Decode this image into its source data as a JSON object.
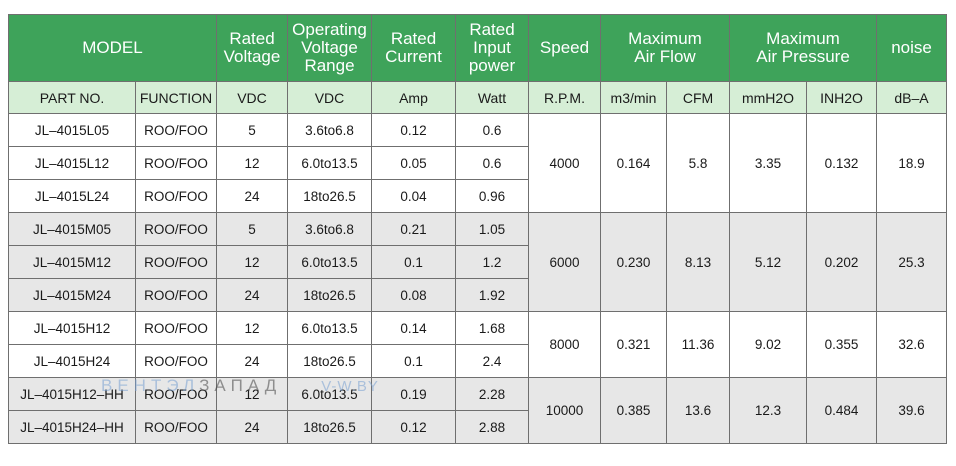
{
  "header": {
    "model": "MODEL",
    "rated_voltage": "Rated\nVoltage",
    "operating_voltage_range": "Operating\nVoltage\nRange",
    "rated_current": "Rated\nCurrent",
    "rated_input_power": "Rated\nInput\npower",
    "speed": "Speed",
    "max_air_flow": "Maximum\nAir Flow",
    "max_air_pressure": "Maximum\nAir Pressure",
    "noise": "noise"
  },
  "subheader": {
    "part_no": "PART NO.",
    "function": "FUNCTION",
    "vdc1": "VDC",
    "vdc2": "VDC",
    "amp": "Amp",
    "watt": "Watt",
    "rpm": "R.P.M.",
    "m3min": "m3/min",
    "cfm": "CFM",
    "mmh2o": "mmH2O",
    "inh2o": "INH2O",
    "dba": "dB–A"
  },
  "rows": [
    {
      "part": "JL–4015L05",
      "func": "ROO/FOO",
      "volt": "5",
      "range": "3.6to6.8",
      "amp": "0.12",
      "watt": "0.6"
    },
    {
      "part": "JL–4015L12",
      "func": "ROO/FOO",
      "volt": "12",
      "range": "6.0to13.5",
      "amp": "0.05",
      "watt": "0.6"
    },
    {
      "part": "JL–4015L24",
      "func": "ROO/FOO",
      "volt": "24",
      "range": "18to26.5",
      "amp": "0.04",
      "watt": "0.96"
    },
    {
      "part": "JL–4015M05",
      "func": "ROO/FOO",
      "volt": "5",
      "range": "3.6to6.8",
      "amp": "0.21",
      "watt": "1.05"
    },
    {
      "part": "JL–4015M12",
      "func": "ROO/FOO",
      "volt": "12",
      "range": "6.0to13.5",
      "amp": "0.1",
      "watt": "1.2"
    },
    {
      "part": "JL–4015M24",
      "func": "ROO/FOO",
      "volt": "24",
      "range": "18to26.5",
      "amp": "0.08",
      "watt": "1.92"
    },
    {
      "part": "JL–4015H12",
      "func": "ROO/FOO",
      "volt": "12",
      "range": "6.0to13.5",
      "amp": "0.14",
      "watt": "1.68"
    },
    {
      "part": "JL–4015H24",
      "func": "ROO/FOO",
      "volt": "24",
      "range": "18to26.5",
      "amp": "0.1",
      "watt": "2.4"
    },
    {
      "part": "JL–4015H12–HH",
      "func": "ROO/FOO",
      "volt": "12",
      "range": "6.0to13.5",
      "amp": "0.19",
      "watt": "2.28"
    },
    {
      "part": "JL–4015H24–HH",
      "func": "ROO/FOO",
      "volt": "24",
      "range": "18to26.5",
      "amp": "0.12",
      "watt": "2.88"
    }
  ],
  "groups": [
    {
      "rpm": "4000",
      "m3min": "0.164",
      "cfm": "5.8",
      "mmh2o": "3.35",
      "inh2o": "0.132",
      "dba": "18.9"
    },
    {
      "rpm": "6000",
      "m3min": "0.230",
      "cfm": "8.13",
      "mmh2o": "5.12",
      "inh2o": "0.202",
      "dba": "25.3"
    },
    {
      "rpm": "8000",
      "m3min": "0.321",
      "cfm": "11.36",
      "mmh2o": "9.02",
      "inh2o": "0.355",
      "dba": "32.6"
    },
    {
      "rpm": "10000",
      "m3min": "0.385",
      "cfm": "13.6",
      "mmh2o": "12.3",
      "inh2o": "0.484",
      "dba": "39.6"
    }
  ],
  "watermark": {
    "part1": "ВЕНТЭЛ",
    "part2": "ЗАПАД",
    "part3": "V-W.BY"
  },
  "colors": {
    "header_bg": "#3ea35a",
    "subheader_bg": "#d6eed6",
    "band_gray": "#e7e7e7"
  }
}
